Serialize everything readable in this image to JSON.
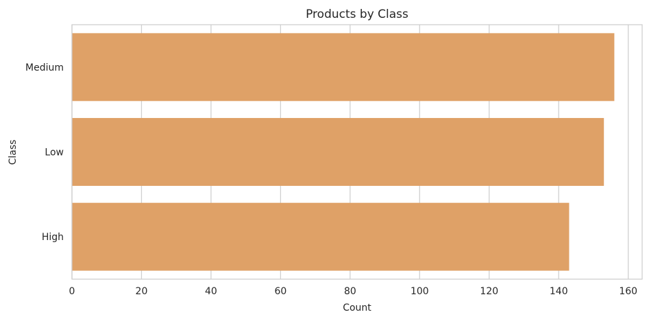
{
  "chart_data": {
    "type": "bar",
    "orientation": "horizontal",
    "title": "Products by Class",
    "xlabel": "Count",
    "ylabel": "Class",
    "categories": [
      "Medium",
      "Low",
      "High"
    ],
    "values": [
      156,
      153,
      143
    ],
    "xlim": [
      0,
      164
    ],
    "xticks": [
      0,
      20,
      40,
      60,
      80,
      100,
      120,
      140,
      160
    ],
    "bar_color": "#dfa167",
    "grid": true,
    "legend": "none"
  }
}
